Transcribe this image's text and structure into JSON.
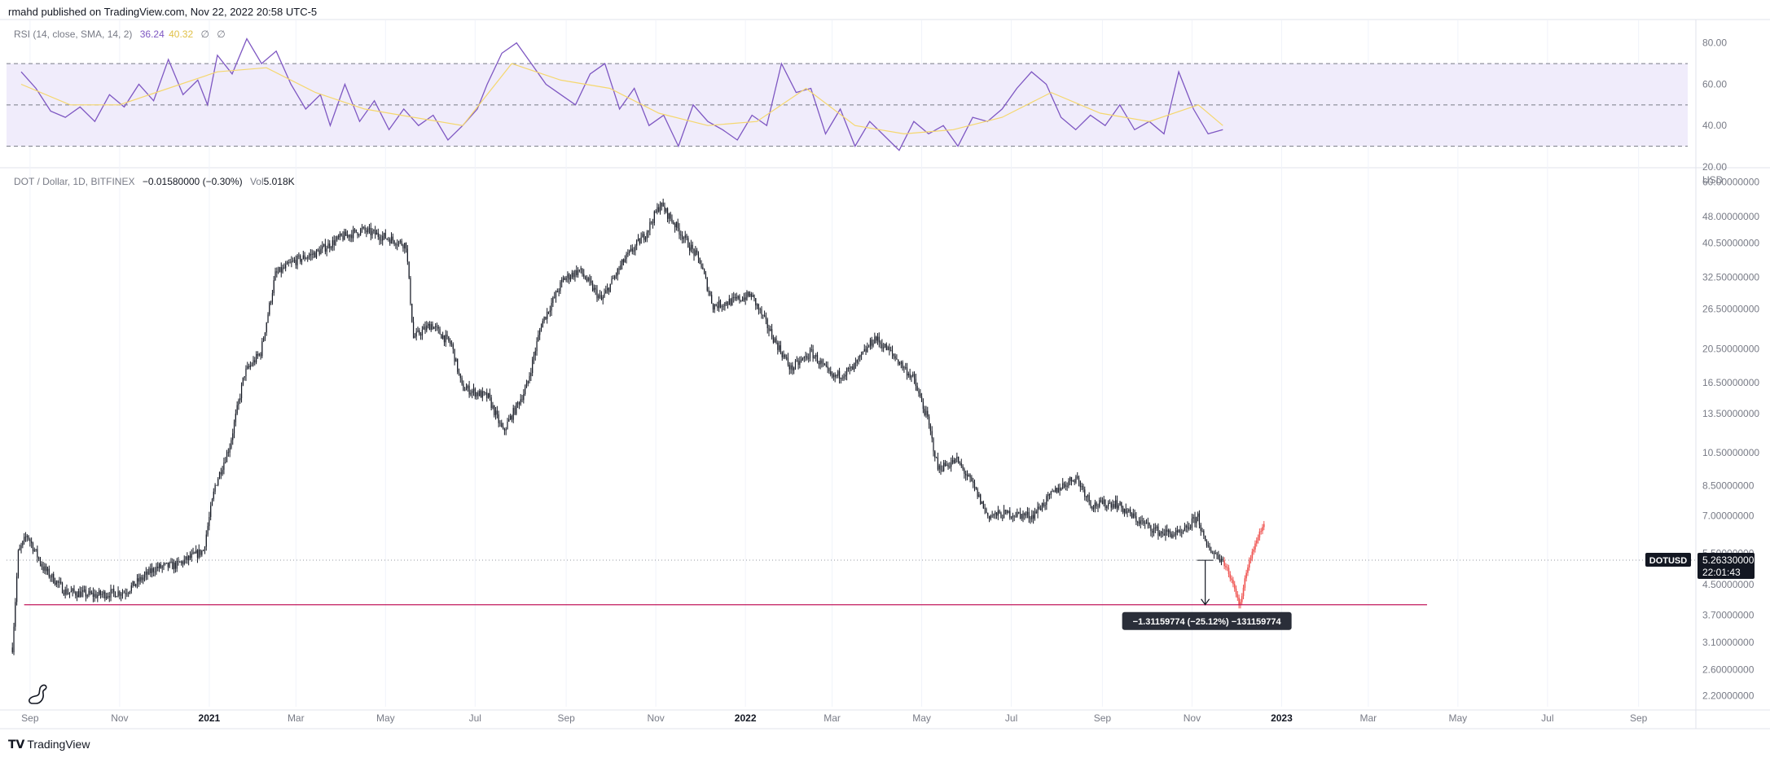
{
  "header": {
    "published": "rmahd published on TradingView.com, Nov 22, 2022 20:58 UTC-5"
  },
  "rsi_legend": {
    "label": "RSI (14, close, SMA, 14, 2)",
    "rsi_value": "36.24",
    "sma_value": "40.32",
    "extra1": "∅",
    "extra2": "∅"
  },
  "price_legend": {
    "symbol": "DOT / Dollar, 1D, BITFINEX",
    "change": "−0.01580000 (−0.30%)",
    "vol_label": "Vol",
    "vol_value": "5.018K"
  },
  "footer": {
    "brand": "TradingView"
  },
  "colors": {
    "rsi_line": "#7e57c2",
    "rsi_sma": "#f5d76e",
    "rsi_band": "#f0ecfb",
    "candle": "#131722",
    "projection": "#ef5350",
    "support_line": "#c2185b",
    "grid": "#f0f3fa",
    "axis_text": "#787b86"
  },
  "chart_data": [
    {
      "type": "line",
      "name": "RSI panel",
      "y_ticks": [
        "80.00",
        "60.00",
        "40.00",
        "20.00"
      ],
      "y_range": [
        20,
        85
      ],
      "bands": {
        "upper": 70,
        "middle": 50,
        "lower": 30
      },
      "series": [
        {
          "name": "RSI",
          "points": [
            [
              0,
              66
            ],
            [
              3,
              58
            ],
            [
              6,
              47
            ],
            [
              9,
              44
            ],
            [
              12,
              49
            ],
            [
              15,
              42
            ],
            [
              18,
              55
            ],
            [
              21,
              49
            ],
            [
              24,
              60
            ],
            [
              27,
              52
            ],
            [
              30,
              72
            ],
            [
              33,
              55
            ],
            [
              36,
              62
            ],
            [
              38,
              50
            ],
            [
              40,
              74
            ],
            [
              43,
              65
            ],
            [
              46,
              82
            ],
            [
              49,
              70
            ],
            [
              52,
              76
            ],
            [
              55,
              60
            ],
            [
              58,
              48
            ],
            [
              61,
              55
            ],
            [
              63,
              40
            ],
            [
              66,
              60
            ],
            [
              69,
              42
            ],
            [
              72,
              52
            ],
            [
              75,
              38
            ],
            [
              78,
              48
            ],
            [
              81,
              40
            ],
            [
              84,
              45
            ],
            [
              87,
              33
            ],
            [
              90,
              40
            ],
            [
              93,
              48
            ],
            [
              95,
              60
            ],
            [
              98,
              75
            ],
            [
              101,
              80
            ],
            [
              104,
              70
            ],
            [
              107,
              60
            ],
            [
              110,
              55
            ],
            [
              113,
              50
            ],
            [
              116,
              65
            ],
            [
              119,
              70
            ],
            [
              122,
              48
            ],
            [
              125,
              58
            ],
            [
              128,
              40
            ],
            [
              131,
              45
            ],
            [
              134,
              30
            ],
            [
              137,
              50
            ],
            [
              140,
              42
            ],
            [
              143,
              38
            ],
            [
              146,
              33
            ],
            [
              149,
              45
            ],
            [
              152,
              40
            ],
            [
              155,
              70
            ],
            [
              158,
              56
            ],
            [
              161,
              58
            ],
            [
              164,
              36
            ],
            [
              167,
              48
            ],
            [
              170,
              30
            ],
            [
              173,
              42
            ],
            [
              176,
              35
            ],
            [
              179,
              28
            ],
            [
              182,
              42
            ],
            [
              185,
              36
            ],
            [
              188,
              40
            ],
            [
              191,
              30
            ],
            [
              194,
              44
            ],
            [
              197,
              42
            ],
            [
              200,
              48
            ],
            [
              203,
              58
            ],
            [
              206,
              66
            ],
            [
              209,
              60
            ],
            [
              212,
              44
            ],
            [
              215,
              38
            ],
            [
              218,
              45
            ],
            [
              221,
              40
            ],
            [
              224,
              50
            ],
            [
              227,
              38
            ],
            [
              230,
              42
            ],
            [
              233,
              36
            ],
            [
              236,
              66
            ],
            [
              239,
              48
            ],
            [
              242,
              36
            ],
            [
              245,
              38
            ]
          ]
        },
        {
          "name": "RSI-based MA",
          "points": [
            [
              0,
              60
            ],
            [
              10,
              50
            ],
            [
              20,
              50
            ],
            [
              30,
              58
            ],
            [
              40,
              66
            ],
            [
              50,
              68
            ],
            [
              60,
              56
            ],
            [
              70,
              48
            ],
            [
              80,
              44
            ],
            [
              90,
              40
            ],
            [
              100,
              70
            ],
            [
              110,
              62
            ],
            [
              120,
              58
            ],
            [
              130,
              46
            ],
            [
              140,
              40
            ],
            [
              150,
              42
            ],
            [
              160,
              58
            ],
            [
              170,
              40
            ],
            [
              180,
              36
            ],
            [
              190,
              38
            ],
            [
              200,
              44
            ],
            [
              210,
              56
            ],
            [
              220,
              46
            ],
            [
              230,
              42
            ],
            [
              240,
              50
            ],
            [
              245,
              40
            ]
          ]
        }
      ]
    },
    {
      "type": "candlestick",
      "name": "DOT / Dollar",
      "x_ticks": [
        "Sep",
        "Nov",
        "2021",
        "Mar",
        "May",
        "Jul",
        "Sep",
        "Nov",
        "2022",
        "Mar",
        "May",
        "Jul",
        "Sep",
        "Nov",
        "2023",
        "Mar",
        "May",
        "Jul",
        "Sep"
      ],
      "y_ticks": [
        "60.00000000",
        "48.00000000",
        "40.50000000",
        "32.50000000",
        "26.50000000",
        "20.50000000",
        "16.50000000",
        "13.50000000",
        "10.50000000",
        "8.50000000",
        "7.00000000",
        "5.50000000",
        "4.50000000",
        "3.70000000",
        "3.10000000",
        "2.60000000",
        "2.20000000"
      ],
      "y_unit": "USD",
      "y_scale": "log",
      "y_range": [
        2.05,
        65
      ],
      "price_path": [
        [
          "2020-08-20",
          3.0
        ],
        [
          "2020-08-24",
          5.5
        ],
        [
          "2020-08-30",
          6.2
        ],
        [
          "2020-09-10",
          5.0
        ],
        [
          "2020-09-25",
          4.3
        ],
        [
          "2020-10-15",
          4.2
        ],
        [
          "2020-11-05",
          4.3
        ],
        [
          "2020-11-25",
          5.0
        ],
        [
          "2020-12-10",
          5.1
        ],
        [
          "2020-12-28",
          5.6
        ],
        [
          "2021-01-05",
          8.5
        ],
        [
          "2021-01-15",
          11.0
        ],
        [
          "2021-01-25",
          17.5
        ],
        [
          "2021-02-05",
          20.0
        ],
        [
          "2021-02-15",
          33.0
        ],
        [
          "2021-02-28",
          36.0
        ],
        [
          "2021-03-15",
          38.0
        ],
        [
          "2021-04-01",
          42.0
        ],
        [
          "2021-04-15",
          44.0
        ],
        [
          "2021-05-01",
          42.0
        ],
        [
          "2021-05-15",
          40.0
        ],
        [
          "2021-05-20",
          22.0
        ],
        [
          "2021-06-01",
          24.0
        ],
        [
          "2021-06-15",
          21.0
        ],
        [
          "2021-06-22",
          16.0
        ],
        [
          "2021-07-10",
          15.0
        ],
        [
          "2021-07-20",
          12.0
        ],
        [
          "2021-08-05",
          16.0
        ],
        [
          "2021-08-15",
          24.0
        ],
        [
          "2021-08-30",
          32.0
        ],
        [
          "2021-09-10",
          34.0
        ],
        [
          "2021-09-25",
          28.0
        ],
        [
          "2021-10-10",
          36.0
        ],
        [
          "2021-10-25",
          43.0
        ],
        [
          "2021-11-04",
          52.0
        ],
        [
          "2021-11-15",
          45.0
        ],
        [
          "2021-12-01",
          36.0
        ],
        [
          "2021-12-10",
          27.0
        ],
        [
          "2021-12-25",
          28.0
        ],
        [
          "2022-01-05",
          29.0
        ],
        [
          "2022-01-20",
          22.0
        ],
        [
          "2022-02-01",
          18.0
        ],
        [
          "2022-02-15",
          20.0
        ],
        [
          "2022-03-01",
          17.0
        ],
        [
          "2022-03-15",
          18.0
        ],
        [
          "2022-03-30",
          22.0
        ],
        [
          "2022-04-10",
          20.0
        ],
        [
          "2022-04-25",
          17.0
        ],
        [
          "2022-05-05",
          13.0
        ],
        [
          "2022-05-12",
          9.5
        ],
        [
          "2022-05-25",
          10.0
        ],
        [
          "2022-06-05",
          8.5
        ],
        [
          "2022-06-15",
          7.0
        ],
        [
          "2022-06-30",
          7.1
        ],
        [
          "2022-07-15",
          7.0
        ],
        [
          "2022-08-01",
          8.3
        ],
        [
          "2022-08-14",
          9.0
        ],
        [
          "2022-08-25",
          7.5
        ],
        [
          "2022-09-10",
          7.6
        ],
        [
          "2022-09-25",
          6.8
        ],
        [
          "2022-10-10",
          6.3
        ],
        [
          "2022-10-25",
          6.2
        ],
        [
          "2022-11-05",
          7.0
        ],
        [
          "2022-11-10",
          5.8
        ],
        [
          "2022-11-22",
          5.26
        ]
      ],
      "projection": [
        [
          "2022-11-22",
          5.26
        ],
        [
          "2022-11-27",
          4.7
        ],
        [
          "2022-12-01",
          4.3
        ],
        [
          "2022-12-03",
          3.95
        ],
        [
          "2022-12-06",
          4.4
        ],
        [
          "2022-12-10",
          5.2
        ],
        [
          "2022-12-15",
          6.0
        ],
        [
          "2022-12-20",
          6.6
        ]
      ],
      "support_level": 3.95,
      "current_price": 5.2633,
      "last_price_label": "5.26330000",
      "symbol_label": "DOTUSD",
      "countdown": "22:01:43",
      "measure_label": "−1.31159774 (−25.12%) −131159774"
    }
  ]
}
